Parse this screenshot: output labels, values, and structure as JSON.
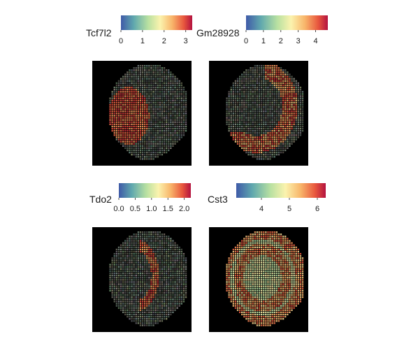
{
  "chart_data": [
    {
      "type": "heatmap",
      "gene": "Tcf7l2",
      "legend_ticks": [
        "0",
        "1",
        "2",
        "3"
      ],
      "scale_range": [
        0,
        3.3
      ],
      "palette": "Spectral",
      "high_region": "left-center"
    },
    {
      "type": "heatmap",
      "gene": "Gm28928",
      "legend_ticks": [
        "0",
        "1",
        "2",
        "3",
        "4"
      ],
      "scale_range": [
        0,
        4.7
      ],
      "palette": "Spectral",
      "high_region": "outer-band"
    },
    {
      "type": "heatmap",
      "gene": "Tdo2",
      "legend_ticks": [
        "0.0",
        "0.5",
        "1.0",
        "1.5",
        "2.0"
      ],
      "scale_range": [
        0,
        2.2
      ],
      "palette": "Spectral",
      "high_region": "central-crescent"
    },
    {
      "type": "heatmap",
      "gene": "Cst3",
      "legend_ticks": [
        "4",
        "5",
        "6"
      ],
      "scale_range": [
        3.1,
        6.3
      ],
      "palette": "Spectral",
      "high_region": "broad"
    }
  ],
  "colors": {
    "background": "#000000",
    "spectral_low": "#3a57a8",
    "spectral_mid": "#fcf5b1",
    "spectral_high": "#9e0142"
  }
}
